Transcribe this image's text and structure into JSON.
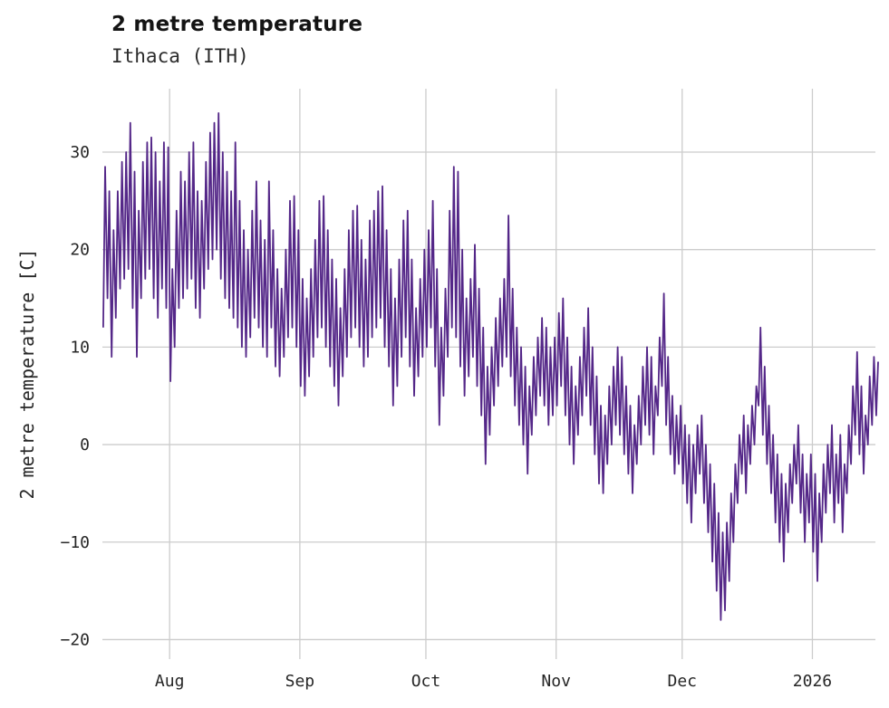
{
  "header": {
    "title": "2 metre temperature",
    "subtitle": "Ithaca (ITH)"
  },
  "chart_data": {
    "type": "line",
    "title": "2 metre temperature",
    "subtitle": "Ithaca (ITH)",
    "xlabel": "",
    "ylabel": "2 metre temperature [C]",
    "legend": "none",
    "grid": true,
    "grid_color": "#cccccc",
    "line_color": "#542788",
    "ylim": [
      -22,
      36.5
    ],
    "yticks": {
      "values": [
        -20,
        -10,
        0,
        10,
        20,
        30
      ],
      "labels": [
        "−20",
        "−10",
        "0",
        "10",
        "20",
        "30"
      ]
    },
    "xticks": {
      "day_offsets": [
        16,
        47,
        77,
        108,
        138,
        169
      ],
      "labels": [
        "Aug",
        "Sep",
        "Oct",
        "Nov",
        "Dec",
        "2026"
      ]
    },
    "x_unit": "day index across plotted range (about mid-July to mid-January)",
    "daily_min_max": [
      [
        12,
        28.5
      ],
      [
        15,
        26
      ],
      [
        9,
        22
      ],
      [
        13,
        26
      ],
      [
        16,
        29
      ],
      [
        17,
        30
      ],
      [
        18,
        33
      ],
      [
        14,
        28
      ],
      [
        9,
        24
      ],
      [
        15,
        29
      ],
      [
        17,
        31
      ],
      [
        18,
        31.5
      ],
      [
        15,
        30
      ],
      [
        13,
        27
      ],
      [
        16,
        31
      ],
      [
        14,
        30.5
      ],
      [
        6.5,
        18
      ],
      [
        10,
        24
      ],
      [
        14,
        28
      ],
      [
        15,
        27
      ],
      [
        16,
        30
      ],
      [
        17,
        31
      ],
      [
        14,
        26
      ],
      [
        13,
        25
      ],
      [
        16,
        29
      ],
      [
        18,
        32
      ],
      [
        19,
        33
      ],
      [
        20,
        34
      ],
      [
        17,
        30
      ],
      [
        15,
        28
      ],
      [
        14,
        26
      ],
      [
        13,
        31
      ],
      [
        12,
        25
      ],
      [
        10,
        22
      ],
      [
        9,
        20
      ],
      [
        11,
        24
      ],
      [
        13,
        27
      ],
      [
        12,
        23
      ],
      [
        10,
        21
      ],
      [
        9,
        27
      ],
      [
        12,
        22
      ],
      [
        8,
        18
      ],
      [
        7,
        16
      ],
      [
        9,
        20
      ],
      [
        11,
        25
      ],
      [
        12,
        25.5
      ],
      [
        10,
        22
      ],
      [
        6,
        17
      ],
      [
        5,
        15
      ],
      [
        7,
        18
      ],
      [
        9,
        21
      ],
      [
        11,
        25
      ],
      [
        12,
        25.5
      ],
      [
        10,
        22
      ],
      [
        8,
        19
      ],
      [
        6,
        17
      ],
      [
        4,
        14
      ],
      [
        7,
        18
      ],
      [
        9,
        22
      ],
      [
        11,
        24
      ],
      [
        12,
        24.5
      ],
      [
        10,
        21
      ],
      [
        8,
        19
      ],
      [
        9,
        23
      ],
      [
        11,
        24
      ],
      [
        12,
        26
      ],
      [
        13,
        26.5
      ],
      [
        10,
        22
      ],
      [
        8,
        18
      ],
      [
        4,
        15
      ],
      [
        6,
        19
      ],
      [
        9,
        23
      ],
      [
        11,
        24
      ],
      [
        8,
        19
      ],
      [
        5,
        14
      ],
      [
        7,
        17
      ],
      [
        9,
        20
      ],
      [
        10,
        22
      ],
      [
        12,
        25
      ],
      [
        8,
        18
      ],
      [
        2,
        12
      ],
      [
        5,
        16
      ],
      [
        9,
        24
      ],
      [
        12,
        28.5
      ],
      [
        11,
        28
      ],
      [
        8,
        20
      ],
      [
        5,
        15
      ],
      [
        7,
        17
      ],
      [
        9,
        20.5
      ],
      [
        6,
        16
      ],
      [
        3,
        12
      ],
      [
        -2,
        8
      ],
      [
        1,
        10
      ],
      [
        4,
        13
      ],
      [
        6,
        15
      ],
      [
        8,
        17
      ],
      [
        9,
        23.5
      ],
      [
        7,
        16
      ],
      [
        4,
        12
      ],
      [
        2,
        10
      ],
      [
        0,
        8
      ],
      [
        -3,
        6
      ],
      [
        1,
        9
      ],
      [
        3,
        11
      ],
      [
        5,
        13
      ],
      [
        4,
        12
      ],
      [
        2,
        10
      ],
      [
        3,
        11
      ],
      [
        4,
        13.5
      ],
      [
        6,
        15
      ],
      [
        3,
        11
      ],
      [
        0,
        8
      ],
      [
        -2,
        6
      ],
      [
        1,
        9
      ],
      [
        3,
        12
      ],
      [
        5,
        14
      ],
      [
        2,
        10
      ],
      [
        -1,
        7
      ],
      [
        -4,
        4
      ],
      [
        -5,
        3
      ],
      [
        -2,
        6
      ],
      [
        0,
        8
      ],
      [
        2,
        10
      ],
      [
        1,
        9
      ],
      [
        -1,
        6
      ],
      [
        -3,
        4
      ],
      [
        -5,
        2
      ],
      [
        -2,
        5
      ],
      [
        0,
        8
      ],
      [
        2,
        10
      ],
      [
        1,
        9
      ],
      [
        -1,
        6
      ],
      [
        3,
        11
      ],
      [
        6,
        15.5
      ],
      [
        2,
        9
      ],
      [
        -1,
        5
      ],
      [
        -3,
        3
      ],
      [
        -2,
        4
      ],
      [
        -4,
        2
      ],
      [
        -6,
        1
      ],
      [
        -8,
        0
      ],
      [
        -5,
        2
      ],
      [
        -3,
        3
      ],
      [
        -6,
        0
      ],
      [
        -9,
        -2
      ],
      [
        -12,
        -4
      ],
      [
        -15,
        -7
      ],
      [
        -18,
        -9
      ],
      [
        -17,
        -8
      ],
      [
        -14,
        -5
      ],
      [
        -10,
        -2
      ],
      [
        -6,
        1
      ],
      [
        -3,
        3
      ],
      [
        -5,
        2
      ],
      [
        -2,
        4
      ],
      [
        0,
        6
      ],
      [
        4,
        12
      ],
      [
        1,
        8
      ],
      [
        -2,
        4
      ],
      [
        -5,
        1
      ],
      [
        -8,
        -1
      ],
      [
        -10,
        -3
      ],
      [
        -12,
        -4
      ],
      [
        -9,
        -2
      ],
      [
        -6,
        0
      ],
      [
        -4,
        2
      ],
      [
        -7,
        -1
      ],
      [
        -10,
        -3
      ],
      [
        -8,
        -1
      ],
      [
        -11,
        -3
      ],
      [
        -14,
        -5
      ],
      [
        -10,
        -2
      ],
      [
        -7,
        0
      ],
      [
        -5,
        2
      ],
      [
        -8,
        -1
      ],
      [
        -6,
        1
      ],
      [
        -9,
        -2
      ],
      [
        -5,
        2
      ],
      [
        -2,
        6
      ],
      [
        1,
        9.5
      ],
      [
        -1,
        6
      ],
      [
        -3,
        3
      ],
      [
        0,
        7
      ],
      [
        2,
        9
      ],
      [
        3,
        8.5
      ]
    ]
  }
}
